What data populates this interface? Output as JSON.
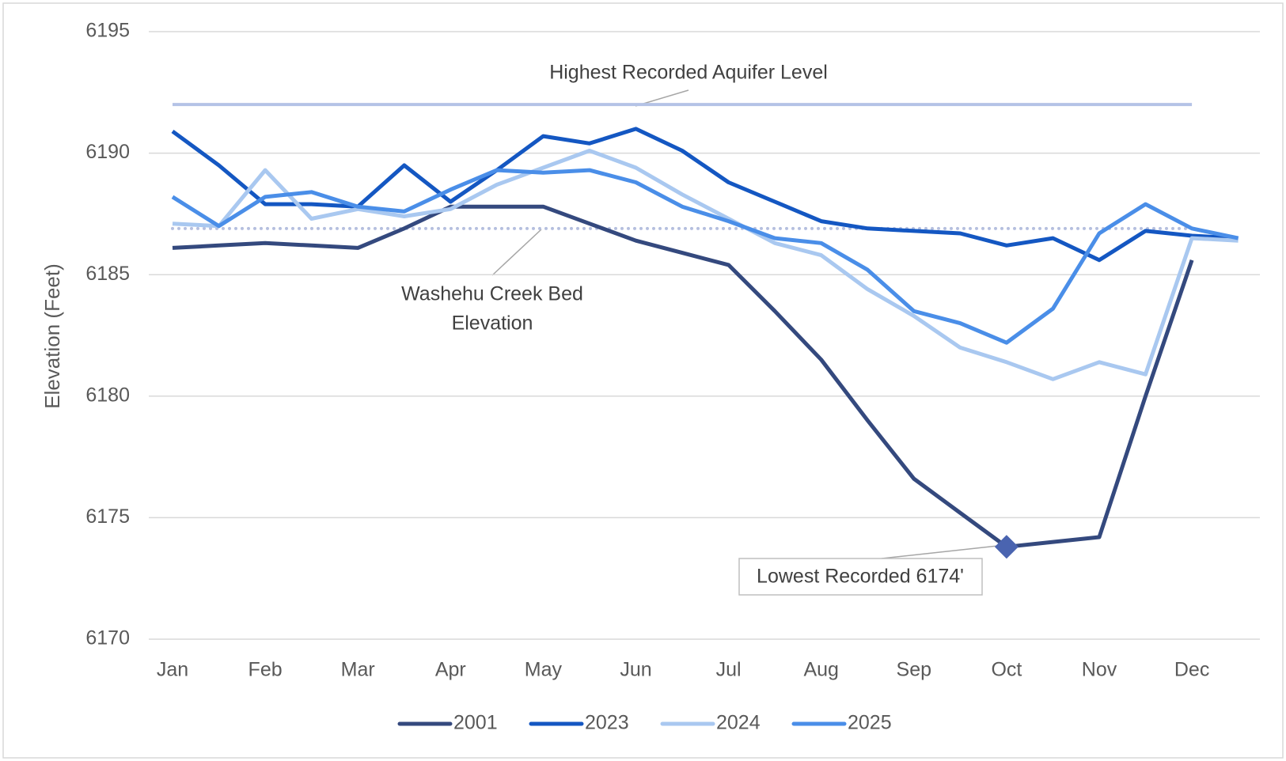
{
  "chart_data": {
    "type": "line",
    "y_label": "Elevation (Feet)",
    "categories": [
      "Jan",
      null,
      "Feb",
      null,
      "Mar",
      null,
      "Apr",
      null,
      "May",
      null,
      "Jun",
      null,
      "Jul",
      null,
      "Aug",
      null,
      "Sep",
      null,
      "Oct",
      null,
      "Nov",
      null,
      "Dec",
      null
    ],
    "series": [
      {
        "name": "2001",
        "color": "#34497e",
        "values": [
          6186.1,
          6186.2,
          6186.3,
          6186.2,
          6186.1,
          6186.9,
          6187.8,
          6187.8,
          6187.8,
          6187.1,
          6186.4,
          6185.9,
          6185.4,
          6183.5,
          6181.5,
          6179.0,
          6176.6,
          6175.2,
          6173.8,
          6174.0,
          6174.2,
          6180.0,
          6185.6,
          null
        ]
      },
      {
        "name": "2023",
        "color": "#1457c2",
        "values": [
          6190.9,
          6189.5,
          6187.9,
          6187.9,
          6187.8,
          6189.5,
          6188.0,
          6189.3,
          6190.7,
          6190.4,
          6191.0,
          6190.1,
          6188.8,
          6188.0,
          6187.2,
          6186.9,
          6186.8,
          6186.7,
          6186.2,
          6186.5,
          6185.6,
          6186.8,
          6186.6,
          6186.5
        ]
      },
      {
        "name": "2024",
        "color": "#a9c8f0",
        "values": [
          6187.1,
          6187.0,
          6189.3,
          6187.3,
          6187.7,
          6187.4,
          6187.7,
          6188.7,
          6189.4,
          6190.1,
          6189.4,
          6188.3,
          6187.3,
          6186.3,
          6185.8,
          6184.4,
          6183.3,
          6182.0,
          6181.4,
          6180.7,
          6181.4,
          6180.9,
          6186.5,
          6186.4
        ]
      },
      {
        "name": "2025",
        "color": "#4a8ee8",
        "values": [
          6188.2,
          6187.0,
          6188.2,
          6188.4,
          6187.8,
          6187.6,
          6188.5,
          6189.3,
          6189.2,
          6189.3,
          6188.8,
          6187.8,
          6187.2,
          6186.5,
          6186.3,
          6185.2,
          6183.5,
          6183.0,
          6182.2,
          6183.6,
          6186.7,
          6187.9,
          6186.9,
          6186.5
        ]
      }
    ],
    "reference_lines": [
      {
        "label": [
          "Highest Recorded Aquifer Level"
        ],
        "value": 6192,
        "color": "#b4c3e6",
        "style": "solid"
      },
      {
        "label": [
          "Washehu Creek  Bed",
          "Elevation"
        ],
        "value": 6186.9,
        "color": "#b5bfdf",
        "style": "dotted"
      }
    ],
    "marker": {
      "text": "Lowest Recorded 6174'",
      "category": "Oct",
      "value": 6173.8,
      "color": "#4a64b0"
    },
    "ylim": [
      6170,
      6195
    ],
    "yticks": [
      6170,
      6175,
      6180,
      6185,
      6190,
      6195
    ],
    "grid": true,
    "legend": "bottom"
  }
}
